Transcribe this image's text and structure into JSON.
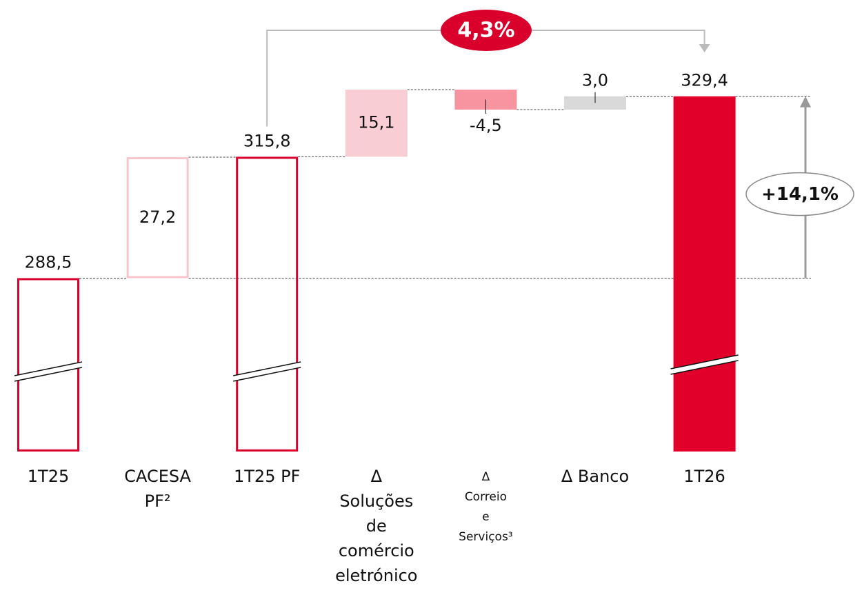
{
  "chart_data": {
    "type": "waterfall",
    "categories": [
      [
        "1T25"
      ],
      [
        "CACESA",
        "PF²"
      ],
      [
        "1T25 PF"
      ],
      [
        "Δ",
        "Soluções",
        "de",
        "comércio",
        "eletrónico"
      ],
      [
        "Δ",
        "Correio",
        "e",
        "Serviços³"
      ],
      [
        "Δ Banco"
      ],
      [
        "1T26"
      ]
    ],
    "measures": [
      "total",
      "relative",
      "total",
      "relative",
      "relative",
      "relative",
      "total"
    ],
    "values": [
      288.5,
      27.2,
      315.8,
      15.1,
      -4.5,
      3.0,
      329.4
    ],
    "value_labels": [
      "288,5",
      "27,2",
      "315,8",
      "15,1",
      "-4,5",
      "3,0",
      "329,4"
    ],
    "colors": [
      "#d9002b",
      "#f7c5cc",
      "#d9002b",
      "#f8cdd4",
      "#f7949f",
      "#d9d9d9",
      "#e0002a"
    ],
    "outlined": [
      true,
      true,
      true,
      false,
      false,
      false,
      false
    ],
    "annotations": {
      "growth_top": "4,3%",
      "growth_total": "+14,1%"
    }
  }
}
